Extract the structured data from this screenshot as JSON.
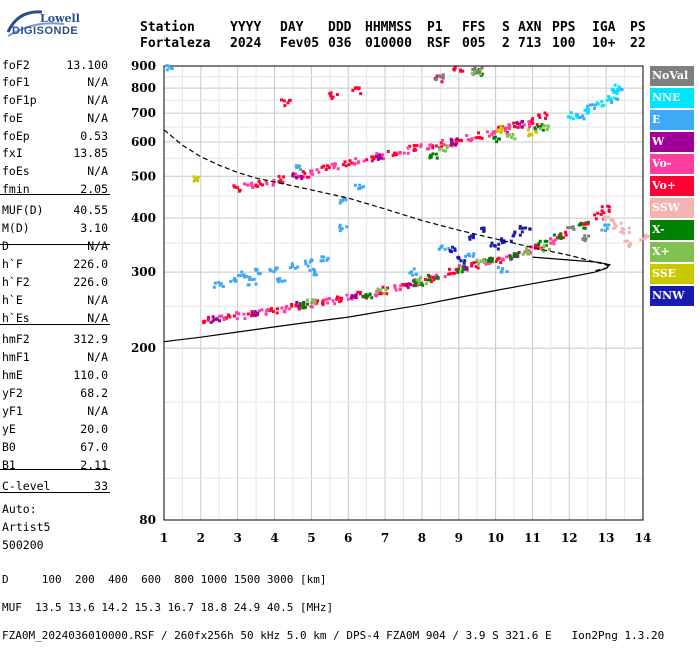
{
  "logo": {
    "line1": "Lowell",
    "line2": "DIGISONDE"
  },
  "header": {
    "labels": [
      "Station",
      "YYYY",
      "DAY",
      "DDD",
      "HHMMSS",
      "P1",
      "FFS",
      "S",
      "AXN",
      "PPS",
      "IGA",
      "PS"
    ],
    "values": [
      "Fortaleza",
      "2024",
      "Fev05",
      "036",
      "010000",
      "RSF",
      "005",
      "2",
      "713",
      "100",
      "10+",
      "22"
    ]
  },
  "params": [
    {
      "k": "foF2",
      "v": "13.100"
    },
    {
      "k": "foF1",
      "v": "N/A"
    },
    {
      "k": "foF1p",
      "v": "N/A"
    },
    {
      "k": "foE",
      "v": "N/A"
    },
    {
      "k": "foEp",
      "v": "0.53"
    },
    {
      "k": "fxI",
      "v": "13.85"
    },
    {
      "k": "foEs",
      "v": "N/A"
    },
    {
      "k": "fmin",
      "v": "2.05"
    },
    {
      "k": "MUF(D)",
      "v": "40.55"
    },
    {
      "k": "M(D)",
      "v": "3.10"
    },
    {
      "k": "D",
      "v": "N/A"
    },
    {
      "k": "h`F",
      "v": "226.0"
    },
    {
      "k": "h`F2",
      "v": "226.0"
    },
    {
      "k": "h`E",
      "v": "N/A"
    },
    {
      "k": "h`Es",
      "v": "N/A"
    },
    {
      "k": "hmF2",
      "v": "312.9"
    },
    {
      "k": "hmF1",
      "v": "N/A"
    },
    {
      "k": "hmE",
      "v": "110.0"
    },
    {
      "k": "yF2",
      "v": "68.2"
    },
    {
      "k": "yF1",
      "v": "N/A"
    },
    {
      "k": "yE",
      "v": "20.0"
    },
    {
      "k": "B0",
      "v": "67.0"
    },
    {
      "k": "B1",
      "v": "2.11"
    },
    {
      "k": "C-level",
      "v": "33"
    },
    {
      "k": "Auto:",
      "v": ""
    },
    {
      "k": "Artist5",
      "v": ""
    },
    {
      "k": "500200",
      "v": ""
    }
  ],
  "legend": [
    {
      "label": "NoVal",
      "color": "#7f7f7f"
    },
    {
      "label": "NNE",
      "color": "#00e5ff"
    },
    {
      "label": "E",
      "color": "#3fa9f5"
    },
    {
      "label": "W",
      "color": "#a0009a"
    },
    {
      "label": "Vo-",
      "color": "#ff3fa0"
    },
    {
      "label": "Vo+",
      "color": "#ff0033"
    },
    {
      "label": "SSW",
      "color": "#f4b2b2"
    },
    {
      "label": "X-",
      "color": "#008000"
    },
    {
      "label": "X+",
      "color": "#80c050"
    },
    {
      "label": "SSE",
      "color": "#c8c800"
    },
    {
      "label": "NNW",
      "color": "#1a1ab0"
    }
  ],
  "bottom": {
    "d_line": "D     100  200  400  600  800 1000 1500 3000 [km]",
    "muf_line": "MUF  13.5 13.6 14.2 15.3 16.7 18.8 24.9 40.5 [MHz]",
    "file_line": "FZA0M_2024036010000.RSF / 260fx256h 50 kHz 5.0 km / DPS-4 FZA0M 904 / 3.9 S 321.6 E   Ion2Png 1.3.20"
  },
  "chart_data": {
    "type": "scatter",
    "xlim": [
      1,
      14
    ],
    "ylim": [
      80,
      900
    ],
    "y_scale": "log",
    "x_ticks": [
      1,
      2,
      3,
      4,
      5,
      6,
      7,
      8,
      9,
      10,
      11,
      12,
      13,
      14
    ],
    "y_ticks": [
      80,
      200,
      300,
      400,
      500,
      600,
      700,
      800,
      900
    ],
    "grid": true,
    "series": [
      {
        "name": "E",
        "color": "#3fa9f5",
        "points": [
          [
            1.2,
            890
          ],
          [
            2.9,
            290
          ],
          [
            3.2,
            295
          ],
          [
            3.6,
            300
          ],
          [
            4.0,
            305
          ],
          [
            4.5,
            310
          ],
          [
            4.9,
            315
          ],
          [
            5.4,
            320
          ],
          [
            2.5,
            280
          ],
          [
            3.4,
            285
          ],
          [
            4.2,
            290
          ],
          [
            5.1,
            300
          ],
          [
            5.9,
            380
          ],
          [
            6.3,
            470
          ],
          [
            4.6,
            520
          ],
          [
            5.8,
            440
          ],
          [
            7.8,
            300
          ],
          [
            8.6,
            340
          ],
          [
            9.3,
            330
          ],
          [
            10.2,
            305
          ],
          [
            12.3,
            690
          ],
          [
            12.6,
            720
          ],
          [
            13.2,
            750
          ],
          [
            13.3,
            790
          ],
          [
            13.0,
            380
          ]
        ]
      },
      {
        "name": "NNE",
        "color": "#00e5ff",
        "points": [
          [
            12.1,
            690
          ],
          [
            12.5,
            710
          ],
          [
            12.9,
            740
          ],
          [
            13.2,
            770
          ],
          [
            13.3,
            800
          ]
        ]
      },
      {
        "name": "Vo+",
        "color": "#ff0033",
        "points": [
          [
            2.2,
            232
          ],
          [
            2.8,
            236
          ],
          [
            3.4,
            240
          ],
          [
            4.0,
            245
          ],
          [
            4.6,
            250
          ],
          [
            5.2,
            255
          ],
          [
            5.8,
            260
          ],
          [
            6.4,
            265
          ],
          [
            7.0,
            272
          ],
          [
            7.6,
            280
          ],
          [
            8.2,
            290
          ],
          [
            8.8,
            300
          ],
          [
            9.4,
            312
          ],
          [
            10.0,
            320
          ],
          [
            10.6,
            330
          ],
          [
            11.2,
            345
          ],
          [
            11.8,
            365
          ],
          [
            12.4,
            385
          ],
          [
            12.8,
            405
          ],
          [
            13.0,
            420
          ],
          [
            3.0,
            470
          ],
          [
            3.6,
            480
          ],
          [
            4.2,
            492
          ],
          [
            4.8,
            505
          ],
          [
            5.4,
            520
          ],
          [
            6.0,
            535
          ],
          [
            6.6,
            550
          ],
          [
            7.2,
            565
          ],
          [
            7.8,
            580
          ],
          [
            8.4,
            592
          ],
          [
            9.0,
            605
          ],
          [
            9.6,
            620
          ],
          [
            10.2,
            640
          ],
          [
            10.6,
            655
          ],
          [
            11.0,
            670
          ],
          [
            11.3,
            690
          ],
          [
            4.3,
            740
          ],
          [
            5.6,
            770
          ],
          [
            6.2,
            790
          ],
          [
            8.5,
            840
          ],
          [
            9.0,
            890
          ]
        ]
      },
      {
        "name": "Vo-",
        "color": "#ff3fa0",
        "points": [
          [
            2.5,
            234
          ],
          [
            3.1,
            238
          ],
          [
            3.7,
            242
          ],
          [
            4.3,
            247
          ],
          [
            4.9,
            252
          ],
          [
            5.5,
            257
          ],
          [
            6.1,
            262
          ],
          [
            6.7,
            268
          ],
          [
            7.3,
            276
          ],
          [
            7.9,
            285
          ],
          [
            8.5,
            295
          ],
          [
            9.1,
            306
          ],
          [
            9.7,
            316
          ],
          [
            10.3,
            325
          ],
          [
            10.9,
            338
          ],
          [
            11.5,
            355
          ],
          [
            3.3,
            475
          ],
          [
            3.9,
            485
          ],
          [
            4.5,
            498
          ],
          [
            5.1,
            512
          ],
          [
            5.7,
            527
          ],
          [
            6.3,
            542
          ],
          [
            6.9,
            557
          ],
          [
            7.5,
            572
          ],
          [
            8.1,
            586
          ],
          [
            8.7,
            598
          ],
          [
            9.3,
            612
          ],
          [
            9.9,
            630
          ],
          [
            10.4,
            648
          ],
          [
            10.8,
            662
          ]
        ]
      },
      {
        "name": "W",
        "color": "#a0009a",
        "points": [
          [
            2.4,
            233
          ],
          [
            3.5,
            241
          ],
          [
            4.7,
            251
          ],
          [
            6.2,
            263
          ],
          [
            7.7,
            282
          ],
          [
            9.2,
            309
          ],
          [
            10.5,
            328
          ],
          [
            4.6,
            500
          ],
          [
            6.8,
            555
          ],
          [
            8.9,
            600
          ],
          [
            10.7,
            660
          ]
        ]
      },
      {
        "name": "X-",
        "color": "#008000",
        "points": [
          [
            4.8,
            252
          ],
          [
            6.5,
            266
          ],
          [
            7.9,
            284
          ],
          [
            8.3,
            292
          ],
          [
            9.0,
            304
          ],
          [
            9.8,
            318
          ],
          [
            10.5,
            328
          ],
          [
            11.3,
            350
          ],
          [
            11.7,
            362
          ],
          [
            12.4,
            385
          ],
          [
            8.3,
            560
          ],
          [
            10.0,
            610
          ],
          [
            11.2,
            650
          ],
          [
            9.5,
            870
          ]
        ]
      },
      {
        "name": "X+",
        "color": "#80c050",
        "points": [
          [
            5.0,
            255
          ],
          [
            6.9,
            270
          ],
          [
            8.0,
            287
          ],
          [
            9.6,
            315
          ],
          [
            10.8,
            335
          ],
          [
            11.4,
            340
          ],
          [
            8.6,
            580
          ],
          [
            10.4,
            620
          ],
          [
            11.3,
            645
          ],
          [
            9.5,
            875
          ]
        ]
      },
      {
        "name": "SSE",
        "color": "#c8c800",
        "points": [
          [
            1.9,
            495
          ],
          [
            10.1,
            640
          ],
          [
            11.0,
            630
          ]
        ]
      },
      {
        "name": "NNW",
        "color": "#1a1ab0",
        "points": [
          [
            8.9,
            340
          ],
          [
            9.4,
            360
          ],
          [
            9.6,
            375
          ],
          [
            10.0,
            345
          ],
          [
            10.3,
            355
          ],
          [
            10.6,
            370
          ],
          [
            10.8,
            380
          ],
          [
            9.1,
            320
          ]
        ]
      },
      {
        "name": "SSW",
        "color": "#f4b2b2",
        "points": [
          [
            13.5,
            375
          ],
          [
            13.3,
            385
          ],
          [
            13.1,
            400
          ],
          [
            14.0,
            360
          ],
          [
            13.6,
            350
          ]
        ]
      },
      {
        "name": "NoVal",
        "color": "#7f7f7f",
        "points": [
          [
            9.5,
            880
          ],
          [
            8.5,
            845
          ],
          [
            12.0,
            380
          ],
          [
            12.4,
            360
          ]
        ]
      }
    ],
    "profile_true_height": {
      "x": [
        1.0,
        2.0,
        3.0,
        4.0,
        5.0,
        6.0,
        7.0,
        8.0,
        9.0,
        10.0,
        11.0,
        12.0,
        12.7,
        13.0,
        13.1,
        12.8,
        12.0,
        11.0
      ],
      "y": [
        207,
        212,
        218,
        224,
        230,
        236,
        244,
        252,
        262,
        272,
        282,
        292,
        300,
        306,
        312,
        316,
        320,
        325
      ]
    },
    "profile_dashed": {
      "x": [
        1.0,
        1.5,
        2.0,
        2.5,
        3.0,
        3.5,
        4.0,
        4.5,
        5.0,
        6.0,
        7.0,
        8.0,
        9.0,
        10.0,
        11.0,
        12.0,
        12.6,
        13.0,
        13.1,
        12.7
      ],
      "y": [
        640,
        590,
        555,
        530,
        510,
        495,
        485,
        475,
        465,
        445,
        420,
        395,
        375,
        358,
        342,
        328,
        318,
        312,
        308,
        302
      ]
    }
  }
}
